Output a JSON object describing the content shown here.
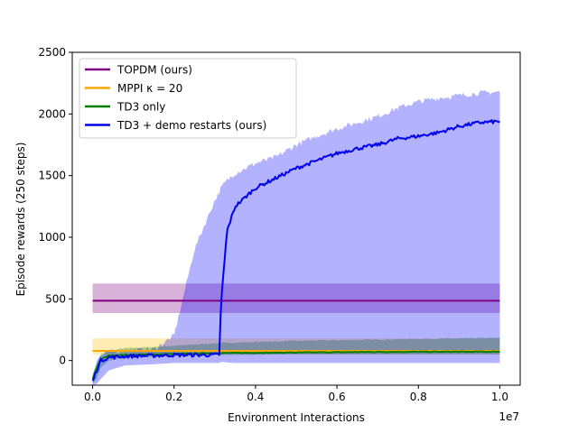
{
  "chart_data": {
    "type": "line",
    "xlabel": "Environment Interactions",
    "ylabel": "Episode rewards (250 steps)",
    "x_offset_label": "1e7",
    "xlim": [
      -0.5,
      10.5
    ],
    "ylim": [
      -200,
      2500
    ],
    "x_ticks": [
      0,
      2,
      4,
      6,
      8,
      10
    ],
    "x_tick_labels": [
      "0.0",
      "0.2",
      "0.4",
      "0.6",
      "0.8",
      "1.0"
    ],
    "y_ticks": [
      0,
      500,
      1000,
      1500,
      2000,
      2500
    ],
    "y_tick_labels": [
      "0",
      "500",
      "1000",
      "1500",
      "2000",
      "2500"
    ],
    "grid": false,
    "legend_position": "upper-left",
    "series": [
      {
        "name": "TOPDM (ours)",
        "color": "#800080",
        "band_color": "#800080",
        "x": [
          0,
          10
        ],
        "mean": [
          485,
          485
        ],
        "lower": [
          385,
          385
        ],
        "upper": [
          625,
          625
        ]
      },
      {
        "name": "MPPI κ = 20",
        "color": "#ffa500",
        "band_color": "#ffc000",
        "x": [
          0,
          10
        ],
        "mean": [
          78,
          78
        ],
        "lower": [
          50,
          50
        ],
        "upper": [
          180,
          180
        ]
      },
      {
        "name": "TD3 only",
        "color": "#008000",
        "band_color": "#008000",
        "x": [
          0,
          0.1,
          0.2,
          0.4,
          0.8,
          1.5,
          3,
          5,
          7,
          10
        ],
        "mean": [
          -150,
          -60,
          10,
          40,
          45,
          50,
          60,
          65,
          70,
          72
        ],
        "lower": [
          -190,
          -150,
          -60,
          0,
          20,
          30,
          45,
          50,
          50,
          50
        ],
        "upper": [
          -110,
          -20,
          50,
          80,
          100,
          110,
          140,
          160,
          170,
          185
        ]
      },
      {
        "name": "TD3 + demo restarts (ours)",
        "color": "#0000ee",
        "band_color": "#0000ff",
        "x": [
          0,
          0.1,
          0.2,
          0.4,
          0.8,
          1.5,
          2.0,
          2.5,
          3.0,
          3.12,
          3.15,
          3.3,
          3.5,
          4.0,
          4.5,
          5.0,
          5.5,
          6.0,
          6.5,
          7.0,
          7.5,
          8.0,
          8.5,
          9.0,
          9.5,
          10.0
        ],
        "mean": [
          -170,
          -80,
          0,
          25,
          35,
          40,
          45,
          45,
          45,
          50,
          450,
          1050,
          1250,
          1400,
          1480,
          1560,
          1620,
          1680,
          1720,
          1750,
          1800,
          1820,
          1850,
          1900,
          1930,
          1940
        ],
        "lower": [
          -200,
          -190,
          -150,
          -80,
          -40,
          -30,
          -20,
          -20,
          -20,
          -20,
          -10,
          -15,
          -20,
          -20,
          -20,
          -20,
          -20,
          -20,
          -20,
          -20,
          -20,
          -20,
          -20,
          -20,
          -20,
          -20
        ],
        "upper": [
          -120,
          0,
          40,
          70,
          80,
          90,
          200,
          900,
          1300,
          1370,
          1400,
          1460,
          1520,
          1600,
          1650,
          1750,
          1820,
          1880,
          1930,
          1980,
          2050,
          2100,
          2130,
          2150,
          2170,
          2180
        ]
      }
    ]
  }
}
